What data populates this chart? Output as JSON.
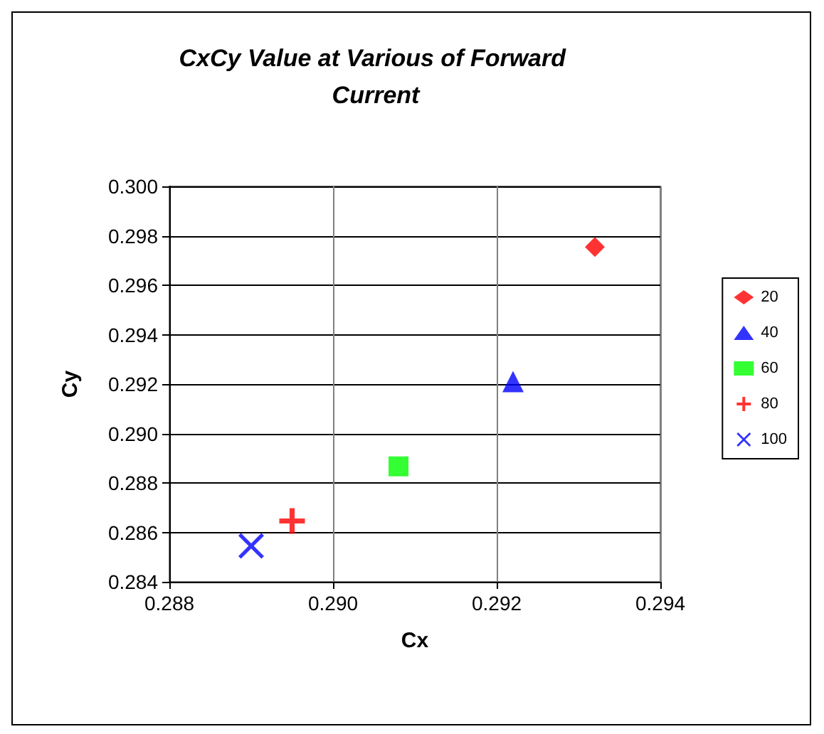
{
  "chart_data": {
    "type": "scatter",
    "title": "CxCy Value at Various of Forward Current",
    "xlabel": "Cx",
    "ylabel": "Cy",
    "xlim": [
      0.288,
      0.294
    ],
    "xticks": [
      0.288,
      {
        "value": 0.29,
        "label": "0.290"
      },
      0.292,
      0.294
    ],
    "ylim": [
      0.284,
      0.3
    ],
    "yticks": [
      0.284,
      0.286,
      0.288,
      {
        "value": 0.29,
        "label": "0.290"
      },
      0.292,
      0.294,
      0.296,
      0.298,
      {
        "value": 0.3,
        "label": "0.300"
      }
    ],
    "grid": true,
    "legend": "right",
    "series": [
      {
        "name": "20",
        "color": "#ff0000",
        "marker": "diamond",
        "x": [
          0.2932
        ],
        "values": [
          0.29755
        ]
      },
      {
        "name": "40",
        "color": "#0000ff",
        "marker": "triangle",
        "x": [
          0.2922
        ],
        "values": [
          0.2921
        ]
      },
      {
        "name": "60",
        "color": "#00ff00",
        "marker": "square",
        "x": [
          0.2908
        ],
        "values": [
          0.28867
        ]
      },
      {
        "name": "80",
        "color": "#ff0000",
        "marker": "cross",
        "x": [
          0.2895
        ],
        "values": [
          0.28646
        ]
      },
      {
        "name": "100",
        "color": "#0000ff",
        "marker": "x",
        "x": [
          0.289
        ],
        "values": [
          0.28545
        ]
      }
    ]
  }
}
